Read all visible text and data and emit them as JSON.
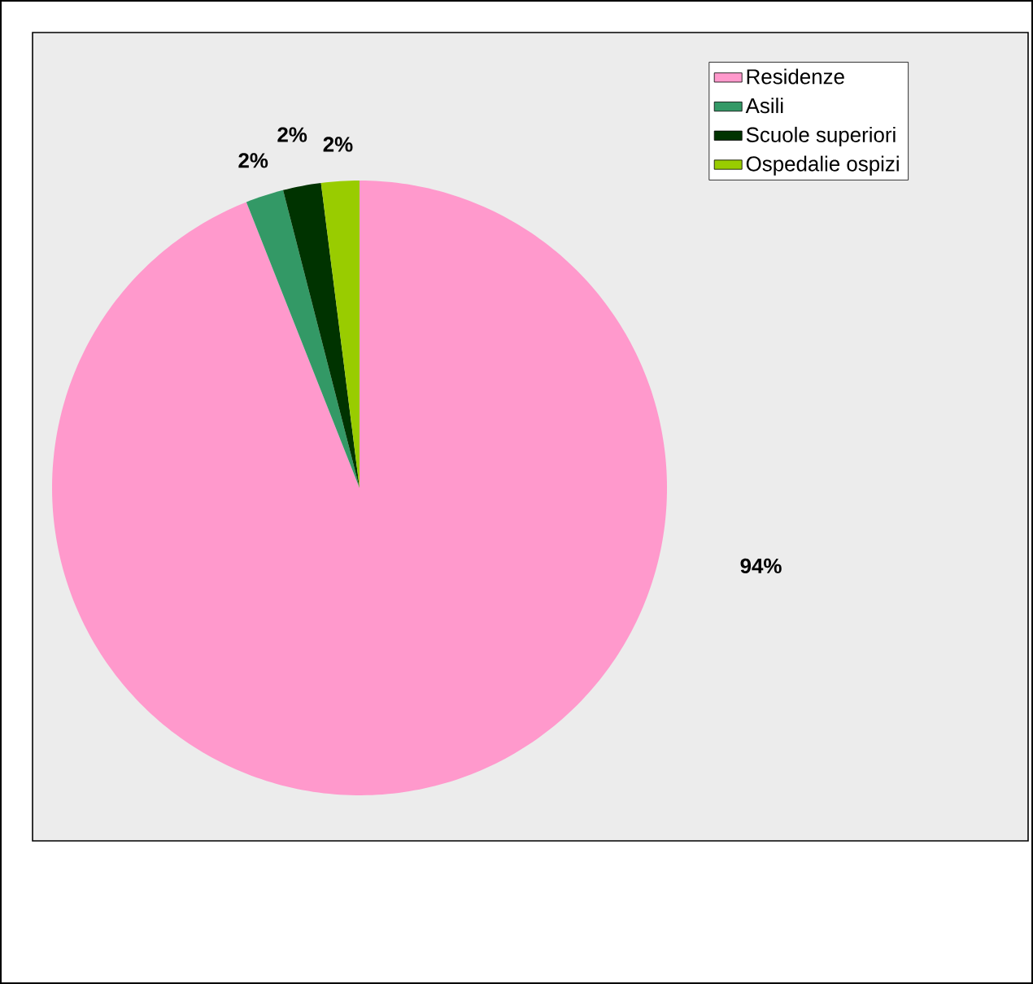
{
  "chart_data": {
    "type": "pie",
    "categories": [
      "Residenze",
      "Asili",
      "Scuole superiori",
      "Ospedalie ospizi"
    ],
    "values": [
      94,
      2,
      2,
      2
    ],
    "colors": [
      "#ff99cc",
      "#339966",
      "#003300",
      "#99cc00"
    ],
    "value_labels": [
      "94%",
      "2%",
      "2%",
      "2%"
    ],
    "legend": "top right"
  }
}
